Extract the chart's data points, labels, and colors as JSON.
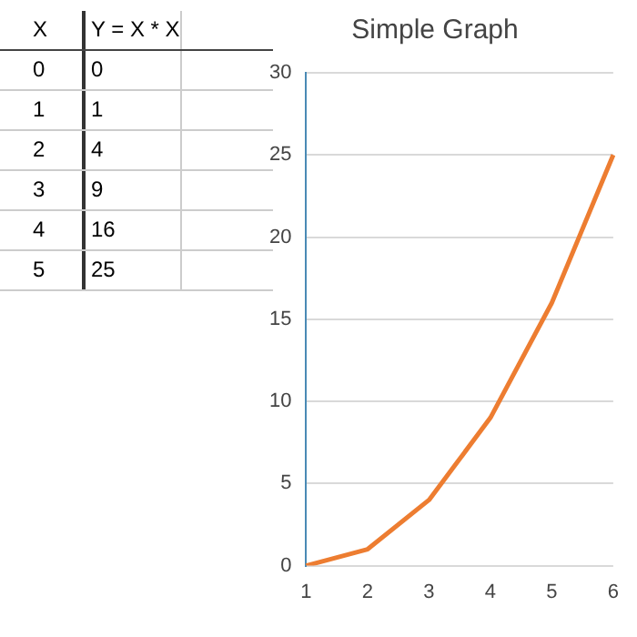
{
  "chart_data": [
    {
      "type": "other",
      "annotations": [
        "X\tY = X * X",
        "0\t0",
        "1\t1",
        "2\t4",
        "3\t9",
        "4\t16",
        "5\t25"
      ]
    },
    {
      "type": "line",
      "title": "Simple Graph",
      "categories": [
        "1",
        "2",
        "3",
        "4",
        "5",
        "6"
      ],
      "series": [
        {
          "color": "#ed7d31",
          "values": [
            0,
            1,
            4,
            9,
            16,
            25
          ]
        }
      ],
      "ylim": [
        0,
        30
      ],
      "yticks": [
        0,
        5,
        10,
        15,
        20,
        25,
        30
      ],
      "grid": "y",
      "marker": "none",
      "line_style": "solid",
      "legend": false
    }
  ]
}
